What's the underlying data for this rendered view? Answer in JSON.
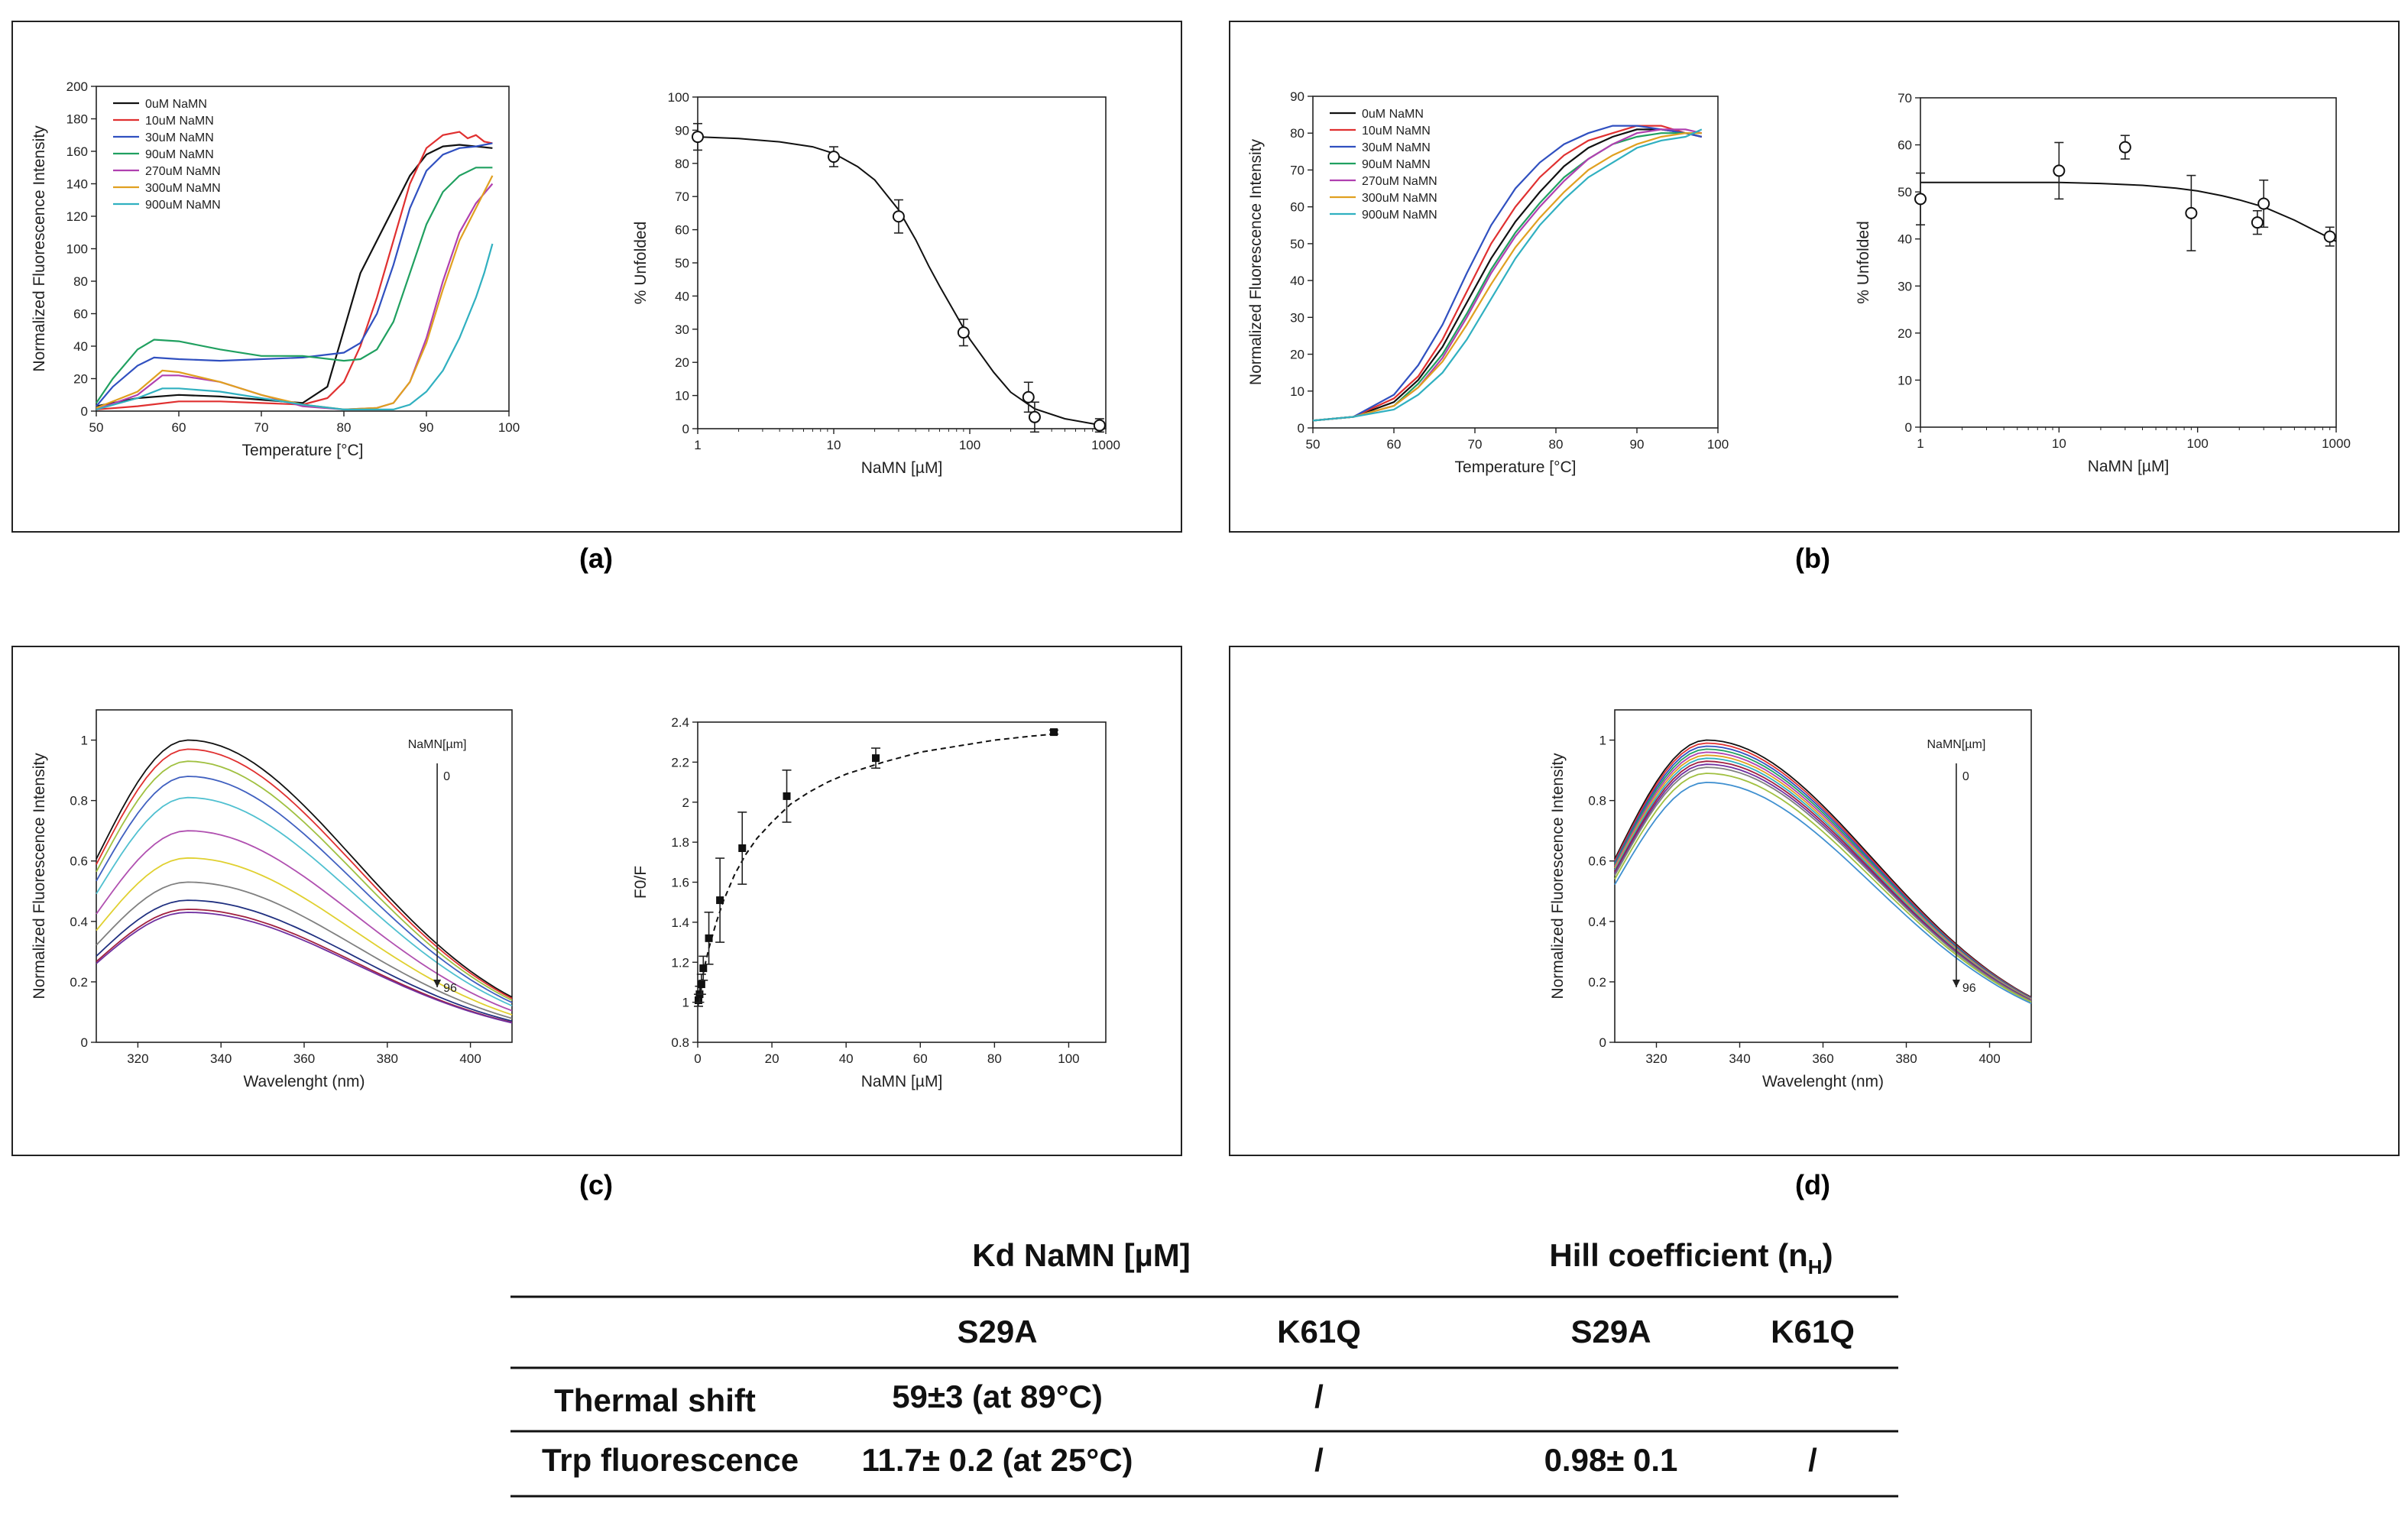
{
  "panels": [
    {
      "label": "(a)"
    },
    {
      "label": "(b)"
    },
    {
      "label": "(c)"
    },
    {
      "label": "(d)"
    }
  ],
  "annotations": {
    "nanm_um_label": "NaMN[µm]",
    "start": "0",
    "end": "96"
  },
  "chart_data": [
    {
      "id": "a-left",
      "type": "line",
      "xlabel": "Temperature [°C]",
      "ylabel": "Normalized Fluorescence Intensity",
      "xlim": [
        50,
        100
      ],
      "ylim": [
        0,
        200
      ],
      "xticks": [
        50,
        60,
        70,
        80,
        90,
        100
      ],
      "yticks": [
        0,
        20,
        40,
        60,
        80,
        100,
        120,
        140,
        160,
        180,
        200
      ],
      "legend": "top-left",
      "series": [
        {
          "name": "0uM NaMN",
          "color": "#111111",
          "x": [
            50,
            55,
            60,
            65,
            70,
            75,
            78,
            80,
            82,
            84,
            86,
            88,
            90,
            92,
            94,
            96,
            98
          ],
          "y": [
            3,
            8,
            10,
            9,
            7,
            5,
            15,
            50,
            85,
            105,
            125,
            145,
            158,
            163,
            164,
            163,
            162
          ]
        },
        {
          "name": "10uM NaMN",
          "color": "#e03030",
          "x": [
            50,
            55,
            60,
            65,
            70,
            75,
            78,
            80,
            82,
            84,
            86,
            88,
            90,
            92,
            94,
            95,
            96,
            97,
            98
          ],
          "y": [
            1,
            3,
            6,
            6,
            5,
            4,
            8,
            18,
            40,
            70,
            105,
            140,
            162,
            170,
            172,
            168,
            170,
            166,
            165
          ]
        },
        {
          "name": "30uM NaMN",
          "color": "#3050c0",
          "x": [
            50,
            52,
            55,
            57,
            60,
            65,
            70,
            75,
            80,
            82,
            84,
            86,
            88,
            90,
            92,
            94,
            96,
            98
          ],
          "y": [
            3,
            15,
            28,
            33,
            32,
            31,
            32,
            33,
            36,
            42,
            60,
            90,
            125,
            148,
            158,
            162,
            163,
            165
          ]
        },
        {
          "name": "90uM NaMN",
          "color": "#20a060",
          "x": [
            50,
            52,
            55,
            57,
            60,
            65,
            70,
            75,
            80,
            82,
            84,
            86,
            88,
            90,
            92,
            94,
            96,
            98
          ],
          "y": [
            5,
            20,
            38,
            44,
            43,
            38,
            34,
            34,
            31,
            32,
            38,
            55,
            85,
            115,
            135,
            145,
            150,
            150
          ]
        },
        {
          "name": "270uM NaMN",
          "color": "#b040b0",
          "x": [
            50,
            55,
            58,
            60,
            65,
            70,
            75,
            80,
            84,
            86,
            88,
            90,
            92,
            94,
            96,
            98
          ],
          "y": [
            1,
            10,
            22,
            22,
            18,
            10,
            3,
            1,
            2,
            5,
            18,
            45,
            80,
            110,
            128,
            140
          ]
        },
        {
          "name": "300uM NaMN",
          "color": "#e0a020",
          "x": [
            50,
            55,
            58,
            60,
            65,
            70,
            75,
            80,
            84,
            86,
            88,
            90,
            92,
            94,
            96,
            98
          ],
          "y": [
            2,
            12,
            25,
            24,
            18,
            10,
            4,
            1,
            2,
            5,
            18,
            42,
            75,
            105,
            125,
            145
          ]
        },
        {
          "name": "900uM NaMN",
          "color": "#30b0c0",
          "x": [
            50,
            55,
            58,
            60,
            65,
            70,
            75,
            80,
            86,
            88,
            90,
            92,
            94,
            96,
            97,
            98
          ],
          "y": [
            1,
            8,
            14,
            14,
            12,
            8,
            4,
            1,
            1,
            4,
            12,
            25,
            45,
            70,
            85,
            103
          ]
        }
      ]
    },
    {
      "id": "a-right",
      "type": "scatter",
      "xlabel": "NaMN [µM]",
      "ylabel": "% Unfolded",
      "xscale": "log",
      "xlim": [
        1,
        1000
      ],
      "ylim": [
        0,
        100
      ],
      "xticks": [
        1,
        10,
        100,
        1000
      ],
      "yticks": [
        0,
        10,
        20,
        30,
        40,
        50,
        60,
        70,
        80,
        90,
        100
      ],
      "points": [
        {
          "x": 1,
          "y": 88,
          "err": 4
        },
        {
          "x": 10,
          "y": 82,
          "err": 3
        },
        {
          "x": 30,
          "y": 64,
          "err": 5
        },
        {
          "x": 90,
          "y": 29,
          "err": 4
        },
        {
          "x": 270,
          "y": 9.5,
          "err": 4.5
        },
        {
          "x": 300,
          "y": 3.5,
          "err": 4.5
        },
        {
          "x": 900,
          "y": 1,
          "err": 2
        }
      ],
      "fit": {
        "x": [
          1,
          2,
          4,
          7,
          10,
          15,
          20,
          30,
          40,
          50,
          60,
          80,
          100,
          150,
          200,
          300,
          500,
          800,
          1000
        ],
        "y": [
          88,
          87.5,
          86.5,
          85,
          83,
          79,
          75,
          66,
          57,
          49,
          43,
          34,
          27,
          17,
          11,
          6,
          3,
          1.5,
          1
        ]
      }
    },
    {
      "id": "b-left",
      "type": "line",
      "xlabel": "Temperature [°C]",
      "ylabel": "Normalized Fluorescence Intensity",
      "xlim": [
        50,
        100
      ],
      "ylim": [
        0,
        90
      ],
      "xticks": [
        50,
        60,
        70,
        80,
        90,
        100
      ],
      "yticks": [
        0,
        10,
        20,
        30,
        40,
        50,
        60,
        70,
        80,
        90
      ],
      "legend": "top-left",
      "series": [
        {
          "name": "0uM NaMN",
          "color": "#111111",
          "x": [
            50,
            55,
            60,
            63,
            66,
            69,
            72,
            75,
            78,
            81,
            84,
            87,
            90,
            93,
            96,
            98
          ],
          "y": [
            2,
            3,
            7,
            13,
            22,
            34,
            46,
            56,
            64,
            71,
            76,
            79,
            81,
            81,
            80,
            79
          ]
        },
        {
          "name": "10uM NaMN",
          "color": "#e03030",
          "x": [
            50,
            55,
            60,
            63,
            66,
            69,
            72,
            75,
            78,
            81,
            84,
            87,
            90,
            93,
            96,
            98
          ],
          "y": [
            2,
            3,
            8,
            14,
            24,
            37,
            50,
            60,
            68,
            74,
            78,
            80,
            82,
            82,
            80,
            79
          ]
        },
        {
          "name": "30uM NaMN",
          "color": "#3050c0",
          "x": [
            50,
            55,
            60,
            63,
            66,
            69,
            72,
            75,
            78,
            81,
            84,
            87,
            90,
            93,
            96,
            98
          ],
          "y": [
            2,
            3,
            9,
            17,
            28,
            42,
            55,
            65,
            72,
            77,
            80,
            82,
            82,
            81,
            80,
            79
          ]
        },
        {
          "name": "90uM NaMN",
          "color": "#20a060",
          "x": [
            50,
            55,
            60,
            63,
            66,
            69,
            72,
            75,
            78,
            81,
            84,
            87,
            90,
            93,
            96,
            98
          ],
          "y": [
            2,
            3,
            6,
            12,
            20,
            31,
            43,
            53,
            61,
            68,
            73,
            77,
            79,
            80,
            80,
            80
          ]
        },
        {
          "name": "270uM NaMN",
          "color": "#b040b0",
          "x": [
            50,
            55,
            60,
            63,
            66,
            69,
            72,
            75,
            78,
            81,
            84,
            87,
            90,
            93,
            96,
            98
          ],
          "y": [
            2,
            3,
            6,
            11,
            19,
            30,
            42,
            52,
            60,
            67,
            73,
            77,
            80,
            81,
            81,
            80
          ]
        },
        {
          "name": "300uM NaMN",
          "color": "#e0a020",
          "x": [
            50,
            55,
            60,
            63,
            66,
            69,
            72,
            75,
            78,
            81,
            84,
            87,
            90,
            93,
            96,
            98
          ],
          "y": [
            2,
            3,
            6,
            11,
            18,
            28,
            39,
            49,
            57,
            64,
            70,
            74,
            77,
            79,
            80,
            80
          ]
        },
        {
          "name": "900uM NaMN",
          "color": "#30b0c0",
          "x": [
            50,
            55,
            60,
            63,
            66,
            69,
            72,
            75,
            78,
            81,
            84,
            87,
            90,
            93,
            96,
            98
          ],
          "y": [
            2,
            3,
            5,
            9,
            15,
            24,
            35,
            46,
            55,
            62,
            68,
            72,
            76,
            78,
            79,
            81
          ]
        }
      ]
    },
    {
      "id": "b-right",
      "type": "scatter",
      "xlabel": "NaMN [µM]",
      "ylabel": "% Unfolded",
      "xscale": "log",
      "xlim": [
        1,
        1000
      ],
      "ylim": [
        0,
        70
      ],
      "xticks": [
        1,
        10,
        100,
        1000
      ],
      "yticks": [
        0,
        10,
        20,
        30,
        40,
        50,
        60,
        70
      ],
      "points": [
        {
          "x": 1,
          "y": 48.5,
          "err": 5.5
        },
        {
          "x": 10,
          "y": 54.5,
          "err": 6
        },
        {
          "x": 30,
          "y": 59.5,
          "err": 2.5
        },
        {
          "x": 90,
          "y": 45.5,
          "err": 8
        },
        {
          "x": 270,
          "y": 43.5,
          "err": 2.5
        },
        {
          "x": 300,
          "y": 47.5,
          "err": 5
        },
        {
          "x": 900,
          "y": 40.5,
          "err": 2
        }
      ],
      "fit": {
        "x": [
          1,
          5,
          10,
          20,
          40,
          70,
          100,
          150,
          200,
          300,
          500,
          700,
          1000
        ],
        "y": [
          52,
          52,
          52,
          51.8,
          51.4,
          50.8,
          50.2,
          49.2,
          48.3,
          46.8,
          44,
          41.8,
          39.5
        ]
      }
    },
    {
      "id": "c-left",
      "type": "line",
      "xlabel": "Wavelenght (nm)",
      "ylabel": "Normalized Fluorescence Intensity",
      "xlim": [
        310,
        410
      ],
      "ylim": [
        0,
        1.1
      ],
      "xticks": [
        320,
        340,
        360,
        380,
        400
      ],
      "yticks": [
        0.0,
        0.2,
        0.4,
        0.6,
        0.8,
        1.0
      ],
      "peaks": [
        1.0,
        0.97,
        0.93,
        0.88,
        0.81,
        0.7,
        0.61,
        0.53,
        0.47,
        0.44,
        0.43
      ],
      "colors": [
        "#111111",
        "#e03030",
        "#a0c040",
        "#4060c0",
        "#50c0d0",
        "#b050b0",
        "#e0d030",
        "#808080",
        "#203080",
        "#a02040",
        "#7030a0"
      ]
    },
    {
      "id": "c-right",
      "type": "scatter",
      "xlabel": "NaMN [µM]",
      "ylabel": "F0/F",
      "xlim": [
        0,
        110
      ],
      "ylim": [
        0.8,
        2.4
      ],
      "xticks": [
        0,
        20,
        40,
        60,
        80,
        100
      ],
      "yticks": [
        0.8,
        1.0,
        1.2,
        1.4,
        1.6,
        1.8,
        2.0,
        2.2,
        2.4
      ],
      "points": [
        {
          "x": 0.2,
          "y": 1.01,
          "err": 0.03
        },
        {
          "x": 0.5,
          "y": 1.04,
          "err": 0.04
        },
        {
          "x": 1,
          "y": 1.09,
          "err": 0.05
        },
        {
          "x": 1.5,
          "y": 1.17,
          "err": 0.06
        },
        {
          "x": 3,
          "y": 1.32,
          "err": 0.13
        },
        {
          "x": 6,
          "y": 1.51,
          "err": 0.21
        },
        {
          "x": 12,
          "y": 1.77,
          "err": 0.18
        },
        {
          "x": 24,
          "y": 2.03,
          "err": 0.13
        },
        {
          "x": 48,
          "y": 2.22,
          "err": 0.05
        },
        {
          "x": 96,
          "y": 2.35,
          "err": 0.01
        }
      ],
      "fit": {
        "x": [
          0,
          1,
          2,
          3,
          5,
          7,
          10,
          13,
          16,
          20,
          25,
          30,
          35,
          40,
          50,
          60,
          70,
          80,
          90,
          96
        ],
        "y": [
          1.0,
          1.1,
          1.19,
          1.27,
          1.4,
          1.51,
          1.64,
          1.74,
          1.82,
          1.9,
          1.99,
          2.05,
          2.1,
          2.14,
          2.2,
          2.25,
          2.28,
          2.31,
          2.33,
          2.34
        ]
      }
    },
    {
      "id": "d",
      "type": "line",
      "xlabel": "Wavelenght (nm)",
      "ylabel": "Normalized Fluorescence Intensity",
      "xlim": [
        310,
        410
      ],
      "ylim": [
        0,
        1.1
      ],
      "xticks": [
        320,
        340,
        360,
        380,
        400
      ],
      "yticks": [
        0.0,
        0.2,
        0.4,
        0.6,
        0.8,
        1.0
      ],
      "peaks": [
        1.0,
        0.99,
        0.98,
        0.97,
        0.96,
        0.95,
        0.94,
        0.93,
        0.92,
        0.91,
        0.89,
        0.86
      ],
      "colors": [
        "#111111",
        "#e03030",
        "#3050c0",
        "#20a060",
        "#b040b0",
        "#e0a020",
        "#30b0c0",
        "#a02040",
        "#7030a0",
        "#808080",
        "#a0c040",
        "#4090d0"
      ]
    }
  ],
  "table": {
    "kd_header": "Kd NaMN [",
    "kd_header_unit": "µM",
    "kd_header_close": "]",
    "hill_header": "Hill coefficient (n",
    "hill_header_sub": "H",
    "hill_header_close": ")",
    "sub_headers": [
      "S29A",
      "K61Q",
      "S29A",
      "K61Q"
    ],
    "rows": [
      {
        "label": "Thermal shift",
        "cells": [
          "59±3 (at 89°C)",
          "/",
          "",
          ""
        ]
      },
      {
        "label": "Trp fluorescence",
        "cells": [
          "11.7± 0.2 (at 25°C)",
          "/",
          "0.98± 0.1",
          "/"
        ]
      }
    ]
  }
}
